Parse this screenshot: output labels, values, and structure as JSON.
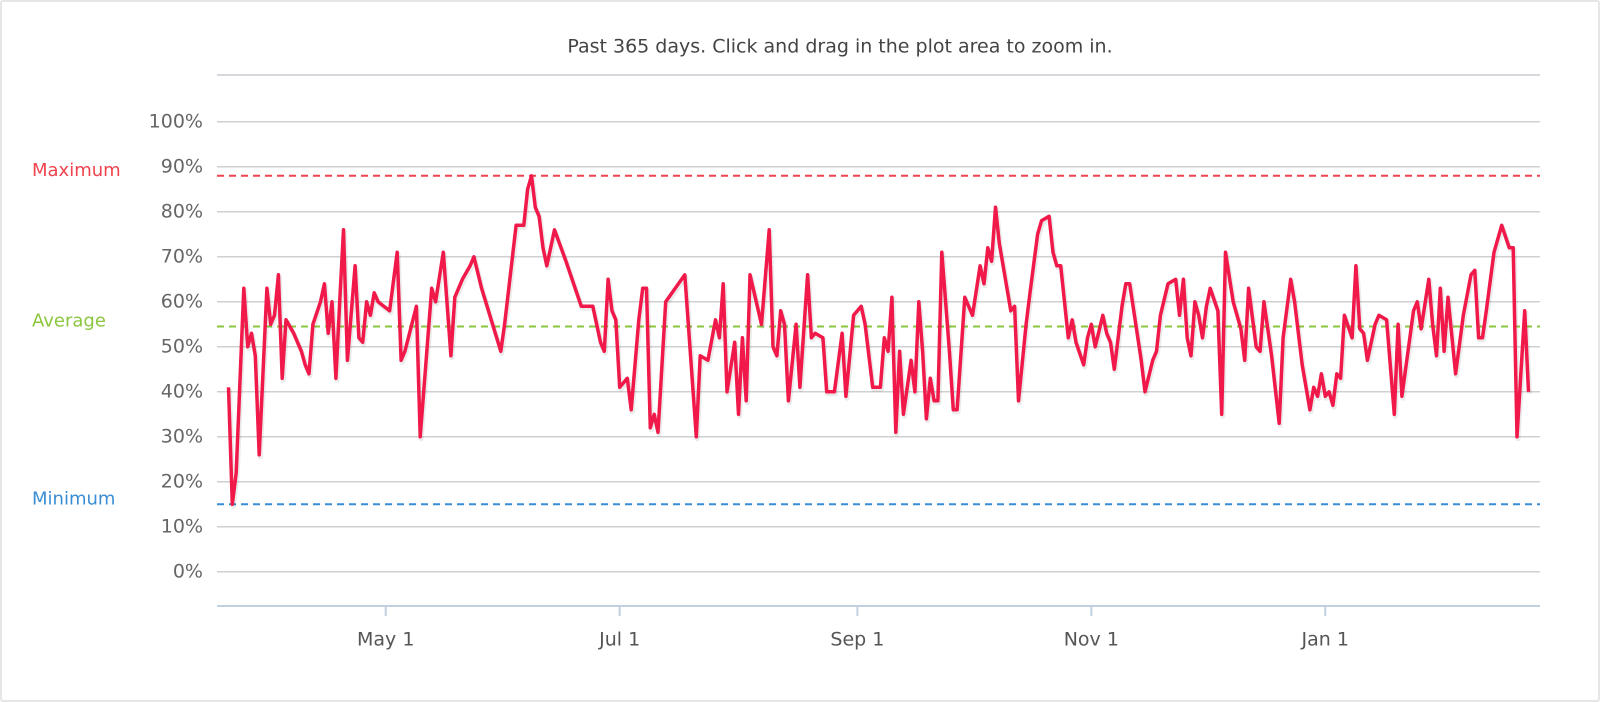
{
  "chart_data": {
    "type": "line",
    "title": "Past 365 days. Click and drag in the plot area to zoom in.",
    "color": "#f0194a",
    "xlim": [
      "Mar 18",
      "Feb 26"
    ],
    "xticks": [
      "May 1",
      "Jul 1",
      "Sep 1",
      "Nov 1",
      "Jan 1"
    ],
    "ylim": [
      -7.6,
      110.4
    ],
    "yticks": [
      {
        "value": 0,
        "label": "0%"
      },
      {
        "value": 10,
        "label": "10%"
      },
      {
        "value": 20,
        "label": "20%"
      },
      {
        "value": 30,
        "label": "30%"
      },
      {
        "value": 40,
        "label": "40%"
      },
      {
        "value": 50,
        "label": "50%"
      },
      {
        "value": 60,
        "label": "60%"
      },
      {
        "value": 70,
        "label": "70%"
      },
      {
        "value": 80,
        "label": "80%"
      },
      {
        "value": 90,
        "label": "90%"
      },
      {
        "value": 100,
        "label": "100%"
      }
    ],
    "grid": true,
    "plot_lines": [
      {
        "label": "Maximum",
        "value": 88,
        "color": "#f0434f"
      },
      {
        "label": "Average",
        "value": 54.5,
        "color": "#8cc63f"
      },
      {
        "label": "Minimum",
        "value": 15,
        "color": "#3a8dd4"
      }
    ],
    "x": [
      "Mar 21",
      "Mar 22",
      "Mar 23",
      "Mar 25",
      "Mar 26",
      "Mar 27",
      "Mar 28",
      "Mar 29",
      "Mar 31",
      "Apr 1",
      "Apr 2",
      "Apr 3",
      "Apr 4",
      "Apr 5",
      "Apr 7",
      "Apr 9",
      "Apr 10",
      "Apr 11",
      "Apr 12",
      "Apr 14",
      "Apr 15",
      "Apr 16",
      "Apr 17",
      "Apr 18",
      "Apr 19",
      "Apr 20",
      "Apr 21",
      "Apr 23",
      "Apr 24",
      "Apr 25",
      "Apr 26",
      "Apr 27",
      "Apr 28",
      "Apr 29",
      "May 2",
      "May 4",
      "May 5",
      "May 6",
      "May 9",
      "May 10",
      "May 13",
      "May 14",
      "May 16",
      "May 18",
      "May 19",
      "May 21",
      "May 23",
      "May 24",
      "May 26",
      "May 31",
      "Jun 1",
      "Jun 4",
      "Jun 6",
      "Jun 7",
      "Jun 8",
      "Jun 9",
      "Jun 10",
      "Jun 11",
      "Jun 12",
      "Jun 14",
      "Jun 17",
      "Jun 21",
      "Jun 24",
      "Jun 26",
      "Jun 27",
      "Jun 28",
      "Jun 29",
      "Jun 30",
      "Jul 1",
      "Jul 3",
      "Jul 4",
      "Jul 6",
      "Jul 7",
      "Jul 8",
      "Jul 9",
      "Jul 10",
      "Jul 11",
      "Jul 13",
      "Jul 18",
      "Jul 21",
      "Jul 22",
      "Jul 24",
      "Jul 26",
      "Jul 27",
      "Jul 28",
      "Jul 29",
      "Jul 31",
      "Aug 1",
      "Aug 2",
      "Aug 3",
      "Aug 4",
      "Aug 7",
      "Aug 9",
      "Aug 10",
      "Aug 11",
      "Aug 12",
      "Aug 13",
      "Aug 14",
      "Aug 16",
      "Aug 17",
      "Aug 19",
      "Aug 20",
      "Aug 21",
      "Aug 23",
      "Aug 24",
      "Aug 26",
      "Aug 28",
      "Aug 29",
      "Aug 31",
      "Sep 2",
      "Sep 3",
      "Sep 5",
      "Sep 7",
      "Sep 8",
      "Sep 9",
      "Sep 10",
      "Sep 11",
      "Sep 12",
      "Sep 13",
      "Sep 15",
      "Sep 16",
      "Sep 17",
      "Sep 18",
      "Sep 19",
      "Sep 20",
      "Sep 21",
      "Sep 22",
      "Sep 23",
      "Sep 25",
      "Sep 26",
      "Sep 27",
      "Sep 29",
      "Oct 1",
      "Oct 3",
      "Oct 4",
      "Oct 5",
      "Oct 6",
      "Oct 7",
      "Oct 8",
      "Oct 11",
      "Oct 12",
      "Oct 13",
      "Oct 15",
      "Oct 16",
      "Oct 18",
      "Oct 19",
      "Oct 21",
      "Oct 22",
      "Oct 23",
      "Oct 24",
      "Oct 26",
      "Oct 27",
      "Oct 28",
      "Oct 30",
      "Oct 31",
      "Nov 1",
      "Nov 2",
      "Nov 4",
      "Nov 5",
      "Nov 6",
      "Nov 7",
      "Nov 9",
      "Nov 10",
      "Nov 11",
      "Nov 14",
      "Nov 15",
      "Nov 17",
      "Nov 18",
      "Nov 19",
      "Nov 21",
      "Nov 23",
      "Nov 24",
      "Nov 25",
      "Nov 26",
      "Nov 27",
      "Nov 28",
      "Nov 29",
      "Nov 30",
      "Dec 1",
      "Dec 2",
      "Dec 4",
      "Dec 5",
      "Dec 6",
      "Dec 8",
      "Dec 10",
      "Dec 11",
      "Dec 12",
      "Dec 14",
      "Dec 15",
      "Dec 16",
      "Dec 18",
      "Dec 20",
      "Dec 21",
      "Dec 23",
      "Dec 24",
      "Dec 26",
      "Dec 28",
      "Dec 29",
      "Dec 30",
      "Dec 31",
      "Jan 1",
      "Jan 2",
      "Jan 3",
      "Jan 4",
      "Jan 5",
      "Jan 6",
      "Jan 8",
      "Jan 9",
      "Jan 10",
      "Jan 11",
      "Jan 12",
      "Jan 14",
      "Jan 15",
      "Jan 17",
      "Jan 19",
      "Jan 20",
      "Jan 21",
      "Jan 24",
      "Jan 25",
      "Jan 26",
      "Jan 28",
      "Jan 29",
      "Jan 30",
      "Jan 31",
      "Feb 1",
      "Feb 2",
      "Feb 4",
      "Feb 6",
      "Feb 8",
      "Feb 9",
      "Feb 10",
      "Feb 11",
      "Feb 12",
      "Feb 14",
      "Feb 16",
      "Feb 18",
      "Feb 19",
      "Feb 20",
      "Feb 22",
      "Feb 23"
    ],
    "values": [
      41,
      15,
      22,
      63,
      50,
      53,
      48,
      26,
      63,
      55,
      57,
      66,
      43,
      56,
      53,
      49,
      46,
      44,
      55,
      60,
      64,
      53,
      60,
      43,
      60,
      76,
      47,
      68,
      52,
      51,
      60,
      57,
      62,
      60,
      58,
      71,
      47,
      49,
      59,
      30,
      63,
      60,
      71,
      48,
      61,
      65,
      68,
      70,
      63,
      49,
      55,
      77,
      77,
      85,
      88,
      81,
      79,
      72,
      68,
      76,
      69,
      59,
      59,
      51,
      49,
      65,
      58,
      56,
      41,
      43,
      36,
      56,
      63,
      63,
      32,
      35,
      31,
      60,
      66,
      30,
      48,
      47,
      56,
      52,
      64,
      40,
      51,
      35,
      52,
      38,
      66,
      55,
      76,
      50,
      48,
      58,
      55,
      38,
      55,
      41,
      66,
      52,
      53,
      52,
      40,
      40,
      53,
      39,
      57,
      59,
      55,
      41,
      41,
      52,
      49,
      61,
      31,
      49,
      35,
      47,
      40,
      60,
      49,
      34,
      43,
      38,
      38,
      71,
      49,
      36,
      36,
      61,
      57,
      68,
      64,
      72,
      69,
      81,
      73,
      58,
      59,
      38,
      55,
      62,
      75,
      78,
      79,
      71,
      68,
      68,
      52,
      56,
      51,
      46,
      52,
      55,
      50,
      57,
      53,
      51,
      45,
      59,
      64,
      64,
      47,
      40,
      47,
      49,
      57,
      64,
      65,
      57,
      65,
      52,
      48,
      60,
      57,
      52,
      59,
      63,
      58,
      35,
      71,
      60,
      54,
      47,
      63,
      50,
      49,
      60,
      48,
      33,
      52,
      65,
      60,
      46,
      36,
      41,
      39,
      44,
      39,
      40,
      37,
      44,
      43,
      57,
      52,
      68,
      54,
      53,
      47,
      55,
      57,
      56,
      35,
      55,
      39,
      58,
      60,
      54,
      65,
      55,
      48,
      63,
      49,
      61,
      44,
      57,
      66,
      67,
      52,
      52,
      58,
      71,
      77,
      72,
      72,
      30,
      58,
      40
    ]
  }
}
